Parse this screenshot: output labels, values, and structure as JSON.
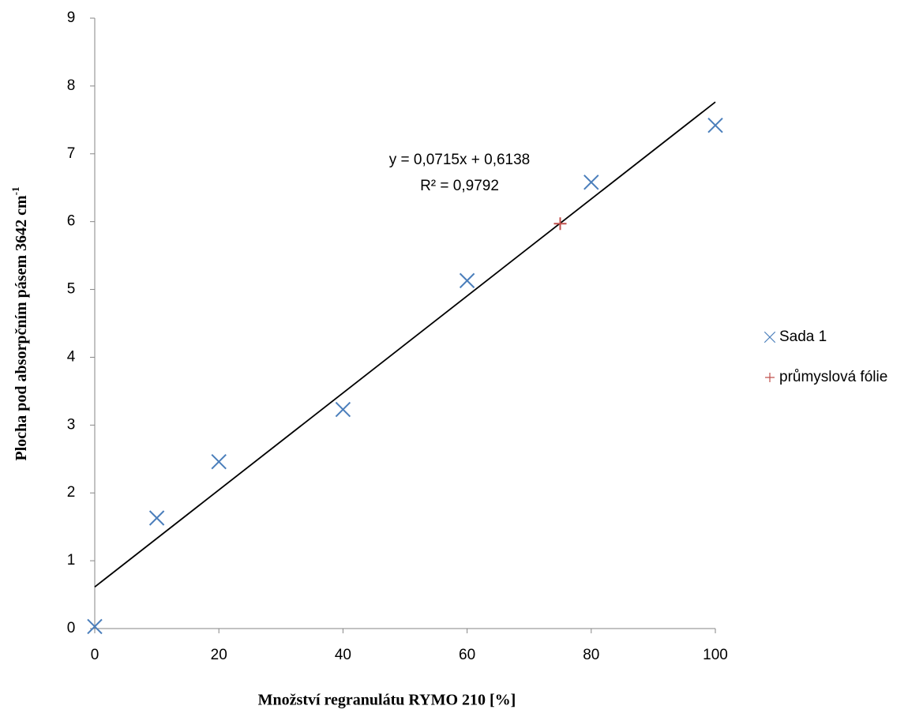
{
  "chart_data": {
    "type": "scatter",
    "xlabel": "Množství regranulátu RYMO 210 [%]",
    "ylabel": "Plocha pod absorpčním pásem 3642 cm",
    "ylabel_superscript": "-1",
    "xlim": [
      0,
      100
    ],
    "xticks": [
      0,
      20,
      40,
      60,
      80,
      100
    ],
    "ylim": [
      0,
      9
    ],
    "yticks": [
      0,
      1,
      2,
      3,
      4,
      5,
      6,
      7,
      8,
      9
    ],
    "grid": false,
    "legend": "right",
    "series": [
      {
        "name": "Sada 1",
        "color": "#4a7ebb",
        "marker": "x",
        "x": [
          0,
          10,
          20,
          40,
          60,
          80,
          100
        ],
        "values": [
          0.03,
          1.63,
          2.46,
          3.23,
          5.13,
          6.58,
          7.42
        ]
      },
      {
        "name": "průmyslová fólie",
        "color": "#c0504d",
        "marker": "+",
        "x": [
          75
        ],
        "values": [
          5.97
        ]
      }
    ],
    "trendline": {
      "slope": 0.0715,
      "intercept": 0.6138,
      "color": "#000000",
      "equation": "y = 0,0715x + 0,6138",
      "r_squared": "R² = 0,9792"
    }
  }
}
